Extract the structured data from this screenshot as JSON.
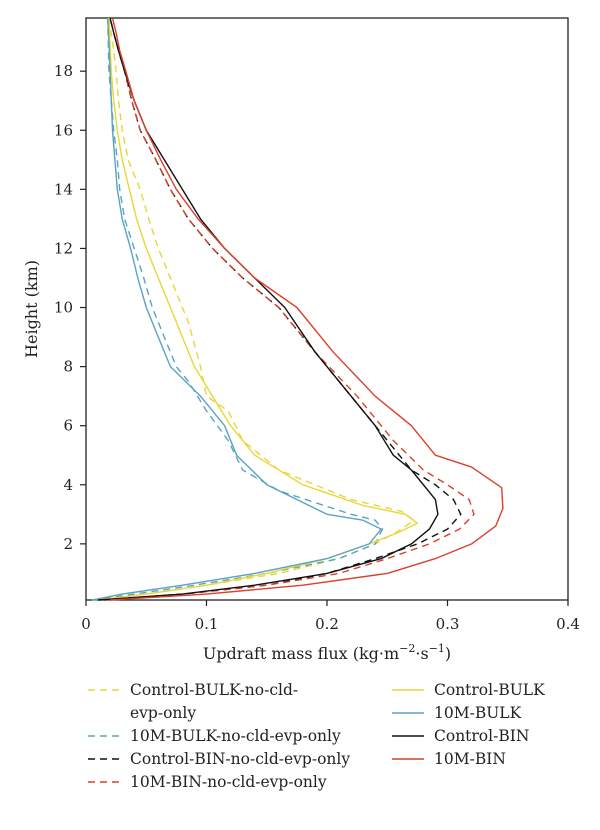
{
  "chart_data": {
    "type": "line",
    "title": "",
    "xlabel": "Updraft mass flux (kg·m",
    "xlabel_exp1": "−2",
    "xlabel_mid": "·s",
    "xlabel_exp2": "−1",
    "xlabel_end": ")",
    "ylabel": "Height (km)",
    "xlim": [
      0,
      0.4
    ],
    "ylim": [
      0.1,
      19.8
    ],
    "xticks": [
      "0",
      "0.1",
      "0.2",
      "0.3",
      "0.4"
    ],
    "yticks": [
      "2",
      "4",
      "6",
      "8",
      "10",
      "12",
      "14",
      "16",
      "18"
    ],
    "grid": false,
    "legend_position": "bottom",
    "series": [
      {
        "name": "Control-BULK-no-cld-evp-only",
        "legend_lines": [
          "Control-BULK-no-cld-",
          "evp-only"
        ],
        "color": "#e8d737",
        "dash": "dashed",
        "x": [
          0.005,
          0.05,
          0.1,
          0.16,
          0.21,
          0.24,
          0.262,
          0.272,
          0.262,
          0.22,
          0.16,
          0.13,
          0.118,
          0.1,
          0.095,
          0.085,
          0.075,
          0.06,
          0.052,
          0.045,
          0.035,
          0.03,
          0.027,
          0.025,
          0.022,
          0.019
        ],
        "y": [
          0.1,
          0.3,
          0.6,
          1.0,
          1.5,
          2.0,
          2.5,
          2.8,
          3.1,
          3.5,
          4.5,
          5.5,
          6.5,
          7.0,
          8.0,
          9.5,
          10.5,
          12.0,
          13.0,
          14.0,
          15.0,
          16.0,
          17.0,
          18.0,
          19.0,
          19.8
        ]
      },
      {
        "name": "10M-BULK-no-cld-evp-only",
        "legend_lines": [
          "10M-BULK-no-cld-evp-only"
        ],
        "color": "#5aa3c4",
        "dash": "dashed",
        "x": [
          0.005,
          0.04,
          0.09,
          0.15,
          0.21,
          0.24,
          0.246,
          0.24,
          0.22,
          0.16,
          0.13,
          0.118,
          0.1,
          0.085,
          0.075,
          0.065,
          0.055,
          0.048,
          0.04,
          0.032,
          0.028,
          0.026,
          0.023,
          0.021,
          0.019,
          0.018
        ],
        "y": [
          0.1,
          0.3,
          0.6,
          1.0,
          1.5,
          2.0,
          2.5,
          2.8,
          3.0,
          3.8,
          4.5,
          5.5,
          6.5,
          7.5,
          8.0,
          9.0,
          10.0,
          11.0,
          12.0,
          13.0,
          14.0,
          15.0,
          16.0,
          17.0,
          18.0,
          19.8
        ]
      },
      {
        "name": "Control-BIN-no-cld-evp-only",
        "legend_lines": [
          "Control-BIN-no-cld-evp-only"
        ],
        "color": "#111111",
        "dash": "dashed",
        "x": [
          0.015,
          0.08,
          0.15,
          0.2,
          0.24,
          0.275,
          0.3,
          0.311,
          0.305,
          0.29,
          0.27,
          0.25,
          0.22,
          0.19,
          0.16,
          0.13,
          0.105,
          0.085,
          0.07,
          0.058,
          0.045,
          0.038,
          0.032,
          0.027,
          0.023,
          0.02
        ],
        "y": [
          0.1,
          0.3,
          0.6,
          1.0,
          1.5,
          2.0,
          2.5,
          3.0,
          3.5,
          4.0,
          4.5,
          5.5,
          7.0,
          8.5,
          10.0,
          11.0,
          12.0,
          13.0,
          14.0,
          15.0,
          16.0,
          17.0,
          18.0,
          18.7,
          19.3,
          19.8
        ]
      },
      {
        "name": "10M-BIN-no-cld-evp-only",
        "legend_lines": [
          "10M-BIN-no-cld-evp-only"
        ],
        "color": "#d9412c",
        "dash": "dashed",
        "x": [
          0.015,
          0.08,
          0.15,
          0.21,
          0.25,
          0.285,
          0.31,
          0.322,
          0.318,
          0.3,
          0.28,
          0.255,
          0.225,
          0.19,
          0.16,
          0.13,
          0.105,
          0.085,
          0.07,
          0.058,
          0.045,
          0.038,
          0.032,
          0.027,
          0.023,
          0.02
        ],
        "y": [
          0.1,
          0.3,
          0.6,
          1.0,
          1.5,
          2.0,
          2.5,
          3.0,
          3.5,
          4.0,
          4.5,
          5.5,
          7.0,
          8.5,
          10.0,
          11.0,
          12.0,
          13.0,
          14.0,
          15.0,
          16.0,
          17.0,
          18.0,
          18.7,
          19.3,
          19.8
        ]
      },
      {
        "name": "Control-BULK",
        "legend_lines": [
          "Control-BULK"
        ],
        "color": "#e8d737",
        "dash": "solid",
        "x": [
          0.01,
          0.05,
          0.1,
          0.15,
          0.2,
          0.235,
          0.26,
          0.275,
          0.265,
          0.23,
          0.18,
          0.14,
          0.12,
          0.105,
          0.09,
          0.08,
          0.07,
          0.06,
          0.05,
          0.042,
          0.036,
          0.03,
          0.026,
          0.023,
          0.021,
          0.019
        ],
        "y": [
          0.1,
          0.3,
          0.6,
          1.0,
          1.5,
          2.0,
          2.4,
          2.7,
          3.0,
          3.3,
          4.0,
          5.0,
          6.0,
          7.0,
          8.0,
          9.0,
          10.0,
          11.0,
          12.0,
          13.0,
          14.0,
          15.0,
          16.0,
          17.0,
          18.0,
          19.8
        ]
      },
      {
        "name": "10M-BULK",
        "legend_lines": [
          "10M-BULK"
        ],
        "color": "#5aa3c4",
        "dash": "solid",
        "x": [
          0.005,
          0.03,
          0.08,
          0.14,
          0.2,
          0.235,
          0.245,
          0.23,
          0.2,
          0.15,
          0.125,
          0.115,
          0.095,
          0.07,
          0.06,
          0.05,
          0.043,
          0.037,
          0.03,
          0.026,
          0.024,
          0.022,
          0.021,
          0.02,
          0.019,
          0.018
        ],
        "y": [
          0.1,
          0.3,
          0.6,
          1.0,
          1.5,
          2.0,
          2.5,
          2.8,
          3.0,
          4.0,
          5.0,
          6.0,
          7.0,
          8.0,
          9.0,
          10.0,
          11.0,
          12.0,
          13.0,
          14.0,
          15.0,
          16.0,
          17.0,
          18.0,
          19.0,
          19.8
        ]
      },
      {
        "name": "Control-BIN",
        "legend_lines": [
          "Control-BIN"
        ],
        "color": "#111111",
        "dash": "solid",
        "x": [
          0.01,
          0.08,
          0.14,
          0.2,
          0.245,
          0.27,
          0.285,
          0.292,
          0.29,
          0.27,
          0.255,
          0.24,
          0.22,
          0.19,
          0.165,
          0.14,
          0.115,
          0.095,
          0.08,
          0.065,
          0.05,
          0.04,
          0.032,
          0.027,
          0.023,
          0.02
        ],
        "y": [
          0.1,
          0.3,
          0.6,
          1.0,
          1.5,
          2.0,
          2.5,
          3.0,
          3.5,
          4.5,
          5.0,
          6.0,
          7.0,
          8.5,
          10.0,
          11.0,
          12.0,
          13.0,
          14.0,
          15.0,
          16.0,
          17.0,
          18.0,
          18.7,
          19.3,
          19.8
        ]
      },
      {
        "name": "10M-BIN",
        "legend_lines": [
          "10M-BIN"
        ],
        "color": "#d9412c",
        "dash": "solid",
        "x": [
          0.02,
          0.1,
          0.18,
          0.25,
          0.29,
          0.32,
          0.34,
          0.346,
          0.345,
          0.32,
          0.29,
          0.27,
          0.24,
          0.205,
          0.175,
          0.14,
          0.115,
          0.093,
          0.075,
          0.062,
          0.05,
          0.04,
          0.033,
          0.028,
          0.025,
          0.022
        ],
        "y": [
          0.1,
          0.3,
          0.6,
          1.0,
          1.5,
          2.0,
          2.6,
          3.2,
          3.9,
          4.6,
          5.0,
          6.0,
          7.0,
          8.5,
          10.0,
          11.0,
          12.0,
          13.0,
          14.0,
          15.0,
          16.0,
          17.0,
          18.0,
          18.7,
          19.3,
          19.8
        ]
      }
    ]
  }
}
